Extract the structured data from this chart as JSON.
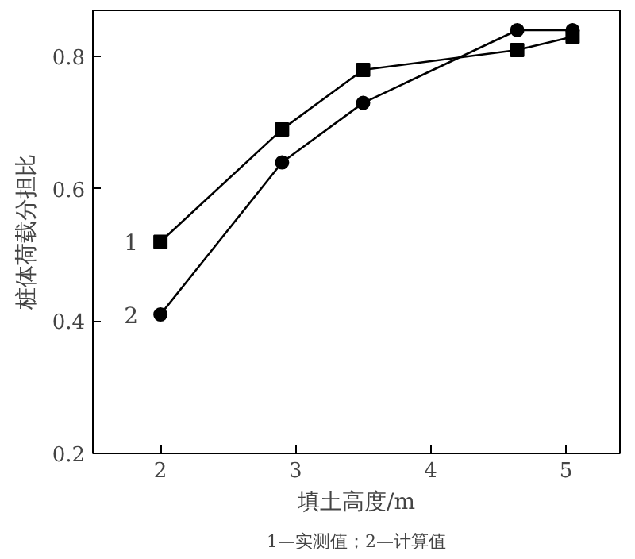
{
  "chart_data": {
    "type": "line",
    "xlabel": "填土高度/m",
    "ylabel": "桩体荷载分担比",
    "series": [
      {
        "name": "1",
        "color": "#000000",
        "marker": "square",
        "x": [
          2,
          2.9,
          3.5,
          4.64,
          5.05
        ],
        "values": [
          0.52,
          0.69,
          0.78,
          0.81,
          0.83
        ]
      },
      {
        "name": "2",
        "color": "#000000",
        "marker": "circle",
        "x": [
          2,
          2.9,
          3.5,
          4.64,
          5.05
        ],
        "values": [
          0.41,
          0.64,
          0.73,
          0.84,
          0.84
        ]
      }
    ],
    "xlim": [
      1.5,
      5.4
    ],
    "ylim": [
      0.2,
      0.87
    ],
    "xticks": [
      2,
      3,
      4,
      5
    ],
    "yticks": [
      0.2,
      0.4,
      0.6,
      0.8
    ],
    "grid": false,
    "legend": "left",
    "line_style": "solid",
    "annotations": [
      "1—实测值；2—计算值"
    ]
  }
}
